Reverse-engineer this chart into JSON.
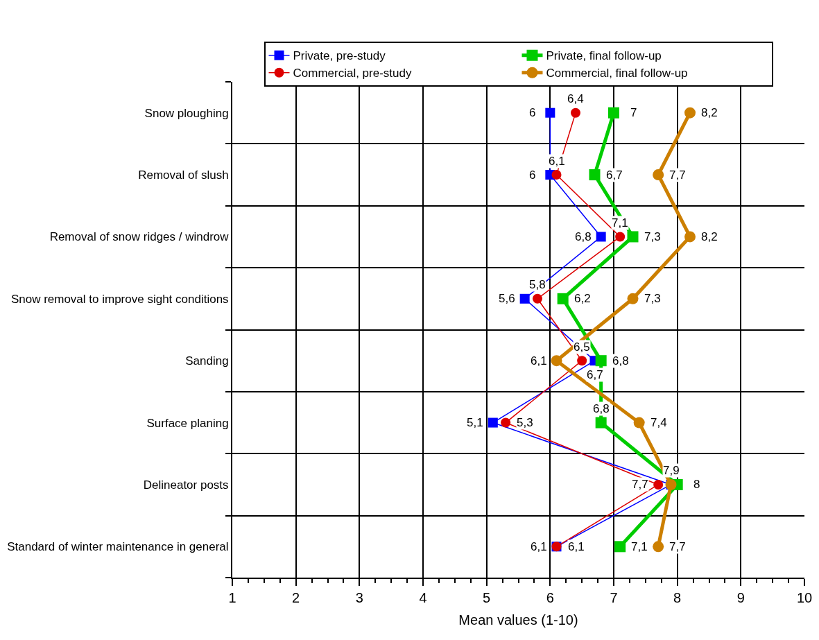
{
  "chart_data": {
    "type": "line",
    "orientation": "horizontal",
    "xlabel": "Mean values (1-10)",
    "categories": [
      "Snow ploughing",
      "Removal of slush",
      "Removal of snow ridges / windrow",
      "Snow removal to improve sight conditions",
      "Sanding",
      "Surface planing",
      "Delineator posts",
      "Standard of winter maintenance in general"
    ],
    "series": [
      {
        "name": "Private, pre-study",
        "color": "#0000ff",
        "marker": "square",
        "values": [
          6,
          6,
          6.8,
          5.6,
          6.7,
          5.1,
          7.9,
          6.1
        ],
        "value_labels": [
          "6",
          "6",
          "6,8",
          "5,6",
          "6,7",
          "5,1",
          null,
          "6,1"
        ]
      },
      {
        "name": "Commercial, pre-study",
        "color": "#dd0000",
        "marker": "circle",
        "values": [
          6.4,
          6.1,
          7.1,
          5.8,
          6.5,
          5.3,
          7.7,
          6.1
        ],
        "value_labels": [
          "6,4",
          "6,1",
          "7,1",
          "5,8",
          "6,5",
          "5,3",
          "7,7",
          "6,1"
        ]
      },
      {
        "name": "Private, final follow-up",
        "color": "#00cc00",
        "marker": "square",
        "values": [
          7,
          6.7,
          7.3,
          6.2,
          6.8,
          6.8,
          8,
          7.1
        ],
        "value_labels": [
          "7",
          "6,7",
          "7,3",
          "6,2",
          "6,8",
          "6,8",
          "8",
          "7,1"
        ]
      },
      {
        "name": "Commercial, final follow-up",
        "color": "#cc7f00",
        "marker": "circle",
        "values": [
          8.2,
          7.7,
          8.2,
          7.3,
          6.1,
          7.4,
          7.9,
          7.7
        ],
        "value_labels": [
          "8,2",
          "7,7",
          "8,2",
          "7,3",
          "6,1",
          "7,4",
          "7,9",
          "7,7"
        ]
      }
    ],
    "xlim": [
      1,
      10
    ],
    "xticks": [
      1,
      2,
      3,
      4,
      5,
      6,
      7,
      8,
      9,
      10
    ],
    "grid": true,
    "legend": "top"
  }
}
